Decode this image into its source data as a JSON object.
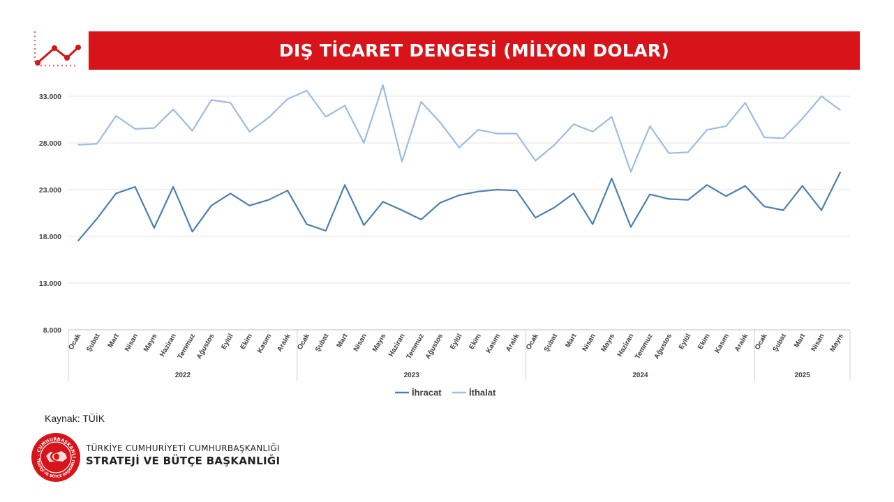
{
  "header": {
    "title": "DIŞ TİCARET DENGESİ (MİLYON DOLAR)"
  },
  "footer": {
    "source": "Kaynak: TÜİK",
    "org_line1": "TÜRKİYE CUMHURİYETİ CUMHURBAŞKANLIĞI",
    "org_line2": "STRATEJİ VE BÜTÇE BAŞKANLIĞI",
    "seal_text_top": "T.C. CUMHURBAŞKANLIĞI",
    "seal_text_bottom": "STRATEJİ VE BÜTÇE BAŞKANLIĞI"
  },
  "colors": {
    "accent": "#d7141a",
    "export": "#4a7fb5",
    "import": "#9bbde2"
  },
  "chart_data": {
    "type": "line",
    "title": "DIŞ TİCARET DENGESİ (MİLYON DOLAR)",
    "ylim": [
      8000,
      35000
    ],
    "yticks": [
      8000,
      13000,
      18000,
      23000,
      28000,
      33000
    ],
    "ytick_labels": [
      "8.000",
      "13.000",
      "18.000",
      "23.000",
      "28.000",
      "33.000"
    ],
    "grid": true,
    "legend_position": "bottom",
    "categories": [
      "Ocak",
      "Şubat",
      "Mart",
      "Nisan",
      "Mayıs",
      "Haziran",
      "Temmuz",
      "Ağustos",
      "Eylül",
      "Ekim",
      "Kasım",
      "Aralık",
      "Ocak",
      "Şubat",
      "Mart",
      "Nisan",
      "Mayıs",
      "Haziran",
      "Temmuz",
      "Ağustos",
      "Eylül",
      "Ekim",
      "Kasım",
      "Aralık",
      "Ocak",
      "Şubat",
      "Mart",
      "Nisan",
      "Mayıs",
      "Haziran",
      "Temmuz",
      "Ağustos",
      "Eylül",
      "Ekim",
      "Kasım",
      "Aralık",
      "Ocak",
      "Şubat",
      "Mart",
      "Nisan",
      "Mayıs"
    ],
    "groups": [
      {
        "label": "2022",
        "count": 12
      },
      {
        "label": "2023",
        "count": 12
      },
      {
        "label": "2024",
        "count": 12
      },
      {
        "label": "2025",
        "count": 5
      }
    ],
    "series": [
      {
        "name": "İhracat",
        "color": "#4a7fb5",
        "values": [
          17500,
          19900,
          22600,
          23300,
          18900,
          23300,
          18500,
          21300,
          22600,
          21300,
          21900,
          22900,
          19300,
          18600,
          23500,
          19200,
          21700,
          20800,
          19800,
          21600,
          22400,
          22800,
          23000,
          22900,
          20000,
          21100,
          22600,
          19300,
          24200,
          19000,
          22500,
          22000,
          21900,
          23500,
          22300,
          23400,
          21200,
          20800,
          23400,
          20800,
          24900
        ]
      },
      {
        "name": "İthalat",
        "color": "#9bbde2",
        "values": [
          27800,
          27900,
          30900,
          29500,
          29600,
          31600,
          29300,
          32600,
          32300,
          29200,
          30700,
          32700,
          33600,
          30800,
          32000,
          28000,
          34200,
          26000,
          32400,
          30200,
          27500,
          29400,
          29000,
          29000,
          26100,
          27800,
          30000,
          29200,
          30800,
          24900,
          29800,
          26900,
          27000,
          29400,
          29800,
          32300,
          28600,
          28500,
          30600,
          33000,
          31500
        ]
      }
    ]
  }
}
